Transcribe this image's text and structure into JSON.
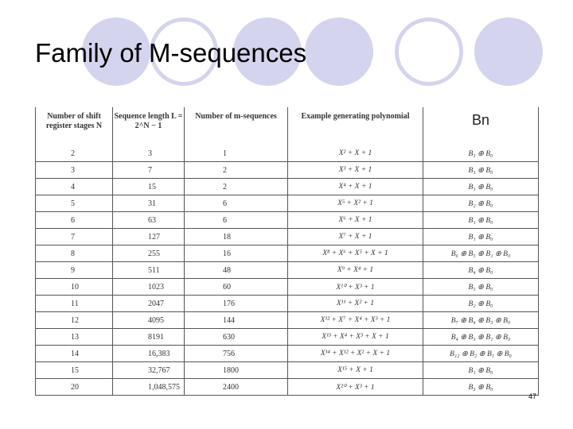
{
  "slide": {
    "title": "Family of M-sequences",
    "page_number": "47"
  },
  "table": {
    "headers": {
      "stages": "Number of shift register stages N",
      "length": "Sequence length L = 2^N − 1",
      "count": "Number of m-sequences",
      "poly": "Example generating polynomial",
      "bn": "Bn"
    },
    "rows": [
      {
        "n": "2",
        "l": "3",
        "m": "1",
        "poly": "X² + X + 1",
        "bn": "B₁ ⊕ B₀"
      },
      {
        "n": "3",
        "l": "7",
        "m": "2",
        "poly": "X³ + X + 1",
        "bn": "B₁ ⊕ B₀"
      },
      {
        "n": "4",
        "l": "15",
        "m": "2",
        "poly": "X⁴ + X + 1",
        "bn": "B₁ ⊕ B₀"
      },
      {
        "n": "5",
        "l": "31",
        "m": "6",
        "poly": "X⁵ + X² + 1",
        "bn": "B₂ ⊕ B₀"
      },
      {
        "n": "6",
        "l": "63",
        "m": "6",
        "poly": "X⁶ + X + 1",
        "bn": "B₁ ⊕ B₀"
      },
      {
        "n": "7",
        "l": "127",
        "m": "18",
        "poly": "X⁷ + X + 1",
        "bn": "B₁ ⊕ B₀"
      },
      {
        "n": "8",
        "l": "255",
        "m": "16",
        "poly": "X⁸ + X⁶ + X⁵ + X + 1",
        "bn": "B₆ ⊕ B₅ ⊕ B₁ ⊕ B₀"
      },
      {
        "n": "9",
        "l": "511",
        "m": "48",
        "poly": "X⁹ + X⁴ + 1",
        "bn": "B₄ ⊕ B₀"
      },
      {
        "n": "10",
        "l": "1023",
        "m": "60",
        "poly": "X¹⁰ + X³ + 1",
        "bn": "B₃ ⊕ B₀"
      },
      {
        "n": "11",
        "l": "2047",
        "m": "176",
        "poly": "X¹¹ + X² + 1",
        "bn": "B₂ ⊕ B₀"
      },
      {
        "n": "12",
        "l": "4095",
        "m": "144",
        "poly": "X¹² + X⁷ + X⁴ + X³ + 1",
        "bn": "B₇ ⊕ B₄ ⊕ B₃ ⊕ B₀"
      },
      {
        "n": "13",
        "l": "8191",
        "m": "630",
        "poly": "X¹³ + X⁴ + X³ + X + 1",
        "bn": "B₄ ⊕ B₃ ⊕ B₁ ⊕ B₀"
      },
      {
        "n": "14",
        "l": "16,383",
        "m": "756",
        "poly": "X¹⁴ + X¹² + X² + X + 1",
        "bn": "B₁₂ ⊕ B₂ ⊕ B₁ ⊕ B₀"
      },
      {
        "n": "15",
        "l": "32,767",
        "m": "1800",
        "poly": "X¹⁵ + X + 1",
        "bn": "B₁ ⊕ B₀"
      },
      {
        "n": "20",
        "l": "1,048,575",
        "m": "2400",
        "poly": "X²⁰ + X³ + 1",
        "bn": "B₃ ⊕ B₀"
      }
    ]
  }
}
